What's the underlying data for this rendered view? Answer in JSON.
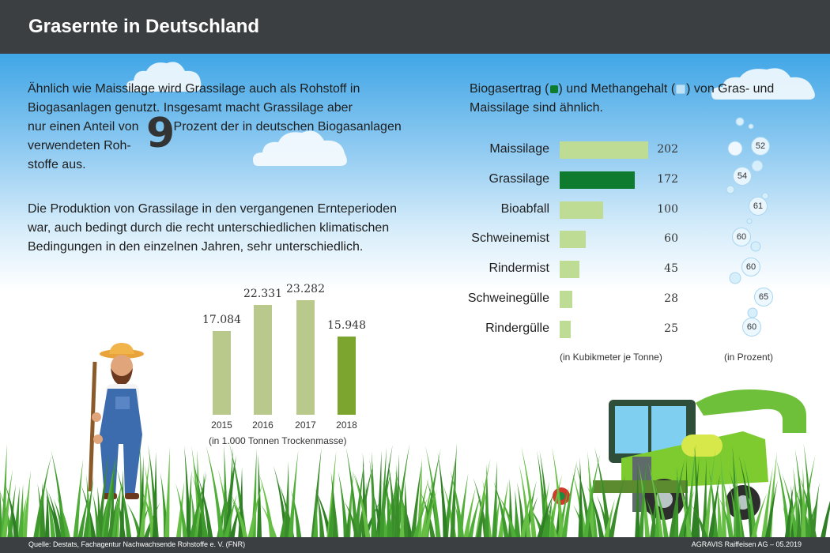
{
  "title": "Grasernte in Deutschland",
  "intro": {
    "line1": "Ähnlich wie Maissilage wird Grassilage auch als Rohstoff in",
    "line2": "Biogasanlagen genutzt. Insgesamt macht Grassilage aber",
    "line3a": "nur einen Anteil von",
    "big_number": "9",
    "line3b": "Prozent der in deutschen Biogasanlagen",
    "line4": "verwendeten Roh-",
    "line5": "stoffe aus."
  },
  "production": {
    "line1": "Die Produktion von Grassilage in den vergangenen Ernteperioden",
    "line2": "war, auch bedingt durch die recht unterschiedlichen klimatischen",
    "line3": "Bedingungen in den einzelnen Jahren, sehr unterschiedlich."
  },
  "biogas_intro": {
    "a": "Biogasertrag (",
    "b": ") und Methangehalt (",
    "c": ")  von Gras- und",
    "line2": "Maissilage sind ähnlich."
  },
  "colors": {
    "light_green": "#bfdc94",
    "dark_green": "#0f7b2f",
    "olive_light": "#b9c98b",
    "olive_dark": "#7ba52f",
    "header": "#3c3f41"
  },
  "chart_data": [
    {
      "type": "bar",
      "categories": [
        "2015",
        "2016",
        "2017",
        "2018"
      ],
      "values": [
        17.084,
        22.331,
        23.282,
        15.948
      ],
      "value_labels": [
        "17.084",
        "22.331",
        "23.282",
        "15.948"
      ],
      "highlight": "2018",
      "xlabel": "(in 1.000 Tonnen Trockenmasse)",
      "ylim": [
        0,
        23.282
      ]
    },
    {
      "type": "bar",
      "orientation": "horizontal",
      "categories": [
        "Maissilage",
        "Grassilage",
        "Bioabfall",
        "Schweinemist",
        "Rindermist",
        "Schweinegülle",
        "Rindergülle"
      ],
      "series": [
        {
          "values": [
            202,
            172,
            100,
            60,
            45,
            28,
            25
          ]
        }
      ],
      "highlight": "Grassilage",
      "xlabel": "(in Kubikmeter je Tonne)",
      "xlim": [
        0,
        202
      ]
    },
    {
      "type": "scatter",
      "categories": [
        "Maissilage",
        "Grassilage",
        "Bioabfall",
        "Schweinemist",
        "Rindermist",
        "Schweinegülle",
        "Rindergülle"
      ],
      "values": [
        52,
        54,
        61,
        60,
        60,
        65,
        60
      ],
      "xlabel": "(in Prozent)"
    }
  ],
  "footer": {
    "source": "Quelle:  Destats, Fachagentur Nachwachsende Rohstoffe e. V. (FNR)",
    "credit": "AGRAVIS Raiffeisen AG – 05.2019"
  }
}
